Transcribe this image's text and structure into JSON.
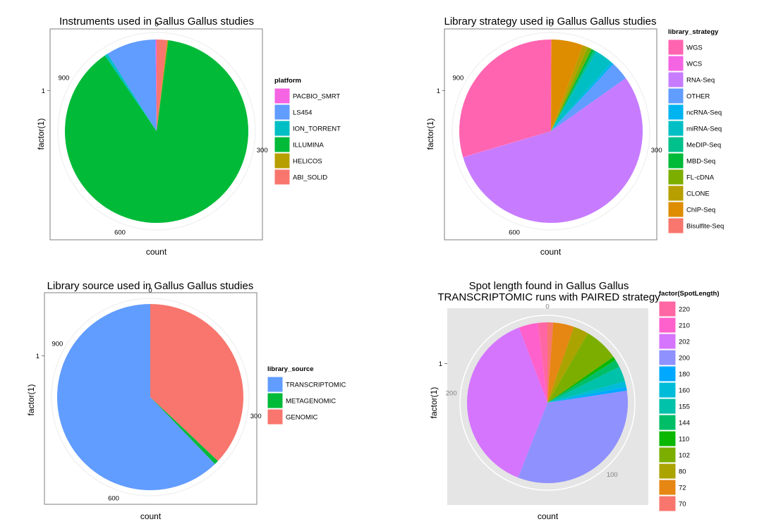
{
  "chart_data": [
    {
      "type": "pie",
      "title": "Instruments used in Gallus Gallus studies",
      "xlabel": "count",
      "ylabel": "factor(1)",
      "y_tick": "1",
      "theta_ticks": [
        "0",
        "300",
        "600",
        "900"
      ],
      "theta_tick_values": [
        0,
        300,
        600,
        900
      ],
      "total": 1080,
      "panel_background": "#ffffff",
      "legend_title": "platform",
      "legend_position": "right",
      "legend": [
        {
          "label": "PACBIO_SMRT",
          "color": "#F564E3"
        },
        {
          "label": "LS454",
          "color": "#619CFF"
        },
        {
          "label": "ION_TORRENT",
          "color": "#00BFC4"
        },
        {
          "label": "ILLUMINA",
          "color": "#00BA38"
        },
        {
          "label": "HELICOS",
          "color": "#B79F00"
        },
        {
          "label": "ABI_SOLID",
          "color": "#F8766D"
        }
      ],
      "stack_order": [
        "ABI_SOLID",
        "HELICOS",
        "ILLUMINA",
        "ION_TORRENT",
        "LS454",
        "PACBIO_SMRT"
      ],
      "values": {
        "ABI_SOLID": 20,
        "HELICOS": 2,
        "ILLUMINA": 955,
        "ION_TORRENT": 6,
        "LS454": 95,
        "PACBIO_SMRT": 2
      }
    },
    {
      "type": "pie",
      "title": "Library strategy used in Gallus Gallus studies",
      "xlabel": "count",
      "ylabel": "factor(1)",
      "y_tick": "1",
      "theta_ticks": [
        "0",
        "300",
        "600",
        "900"
      ],
      "theta_tick_values": [
        0,
        300,
        600,
        900
      ],
      "total": 1080,
      "panel_background": "#ffffff",
      "legend_title": "library_strategy",
      "legend_position": "right",
      "legend": [
        {
          "label": "WGS",
          "color": "#FF64B0"
        },
        {
          "label": "WCS",
          "color": "#F564E3"
        },
        {
          "label": "RNA-Seq",
          "color": "#C77CFF"
        },
        {
          "label": "OTHER",
          "color": "#619CFF"
        },
        {
          "label": "ncRNA-Seq",
          "color": "#00B4F0"
        },
        {
          "label": "miRNA-Seq",
          "color": "#00BFC4"
        },
        {
          "label": "MeDIP-Seq",
          "color": "#00C08B"
        },
        {
          "label": "MBD-Seq",
          "color": "#00BA38"
        },
        {
          "label": "FL-cDNA",
          "color": "#7CAE00"
        },
        {
          "label": "CLONE",
          "color": "#B79F00"
        },
        {
          "label": "ChIP-Seq",
          "color": "#DE8C00"
        },
        {
          "label": "Bisulfite-Seq",
          "color": "#F8766D"
        }
      ],
      "stack_order": [
        "Bisulfite-Seq",
        "ChIP-Seq",
        "CLONE",
        "FL-cDNA",
        "MBD-Seq",
        "MeDIP-Seq",
        "miRNA-Seq",
        "ncRNA-Seq",
        "OTHER",
        "RNA-Seq",
        "WCS",
        "WGS"
      ],
      "values": {
        "Bisulfite-Seq": 1,
        "ChIP-Seq": 60,
        "CLONE": 10,
        "FL-cDNA": 8,
        "MBD-Seq": 5,
        "MeDIP-Seq": 5,
        "miRNA-Seq": 35,
        "ncRNA-Seq": 5,
        "OTHER": 35,
        "RNA-Seq": 596,
        "WCS": 1,
        "WGS": 319
      }
    },
    {
      "type": "pie",
      "title": "Library source used in Gallus Gallus studies",
      "xlabel": "count",
      "ylabel": "factor(1)",
      "y_tick": "1",
      "theta_ticks": [
        "0",
        "300",
        "600",
        "900"
      ],
      "theta_tick_values": [
        0,
        300,
        600,
        900
      ],
      "total": 1080,
      "panel_background": "#ffffff",
      "legend_title": "library_source",
      "legend_position": "right",
      "legend": [
        {
          "label": "TRANSCRIPTOMIC",
          "color": "#619CFF"
        },
        {
          "label": "METAGENOMIC",
          "color": "#00BA38"
        },
        {
          "label": "GENOMIC",
          "color": "#F8766D"
        }
      ],
      "stack_order": [
        "GENOMIC",
        "METAGENOMIC",
        "TRANSCRIPTOMIC"
      ],
      "values": {
        "GENOMIC": 400,
        "METAGENOMIC": 8,
        "TRANSCRIPTOMIC": 672
      }
    },
    {
      "type": "pie",
      "title": "Spot length found in Gallus Gallus\nTRANSCRIPTOMIC runs with PAIRED strategy",
      "xlabel": "count",
      "ylabel": "factor(1)",
      "y_tick": "1",
      "theta_ticks": [
        "0",
        "100",
        "200"
      ],
      "theta_tick_values": [
        0,
        100,
        200
      ],
      "total": 261,
      "panel_background": "#e5e5e5",
      "legend_title": "factor(SpotLength)",
      "legend_position": "right",
      "legend": [
        {
          "label": "220",
          "color": "#FF67A4"
        },
        {
          "label": "210",
          "color": "#FF61CC"
        },
        {
          "label": "202",
          "color": "#D575FE"
        },
        {
          "label": "200",
          "color": "#8F91FF"
        },
        {
          "label": "180",
          "color": "#00A9FF"
        },
        {
          "label": "160",
          "color": "#00BCD8"
        },
        {
          "label": "155",
          "color": "#00C1A9"
        },
        {
          "label": "144",
          "color": "#00BE67"
        },
        {
          "label": "110",
          "color": "#0CB702"
        },
        {
          "label": "102",
          "color": "#7CAE00"
        },
        {
          "label": "80",
          "color": "#ABA300"
        },
        {
          "label": "72",
          "color": "#E68613"
        },
        {
          "label": "70",
          "color": "#F8766D"
        }
      ],
      "stack_order": [
        "70",
        "72",
        "80",
        "102",
        "110",
        "144",
        "155",
        "160",
        "180",
        "200",
        "202",
        "210",
        "220"
      ],
      "values": {
        "70": 3,
        "72": 11,
        "80": 8,
        "102": 18,
        "110": 2,
        "144": 4,
        "155": 8,
        "160": 3,
        "180": 2,
        "200": 87,
        "202": 100,
        "210": 10,
        "220": 5
      }
    }
  ]
}
